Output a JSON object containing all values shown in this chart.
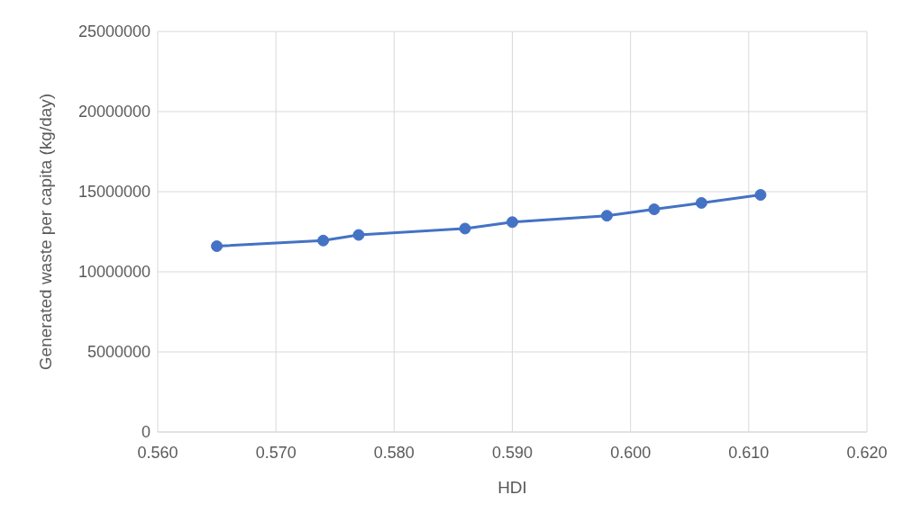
{
  "chart_data": {
    "type": "line",
    "xlabel": "HDI",
    "ylabel": "Generated waste per capita (kg/day)",
    "x": [
      0.565,
      0.574,
      0.577,
      0.586,
      0.59,
      0.598,
      0.602,
      0.606,
      0.611
    ],
    "series": [
      {
        "color": "#4472c4",
        "values": [
          11600000,
          11950000,
          12300000,
          12700000,
          13100000,
          13500000,
          13900000,
          14300000,
          14800000
        ]
      }
    ],
    "xlim": [
      0.56,
      0.62
    ],
    "xticks": [
      {
        "value": 0.56,
        "label": "0.560"
      },
      {
        "value": 0.57,
        "label": "0.570"
      },
      {
        "value": 0.58,
        "label": "0.580"
      },
      {
        "value": 0.59,
        "label": "0.590"
      },
      {
        "value": 0.6,
        "label": "0.600"
      },
      {
        "value": 0.61,
        "label": "0.610"
      },
      {
        "value": 0.62,
        "label": "0.620"
      }
    ],
    "ylim": [
      0,
      25000000
    ],
    "yticks": [
      0,
      5000000,
      10000000,
      15000000,
      20000000,
      25000000
    ],
    "grid": true,
    "marker": "circle",
    "line_style": "solid"
  }
}
